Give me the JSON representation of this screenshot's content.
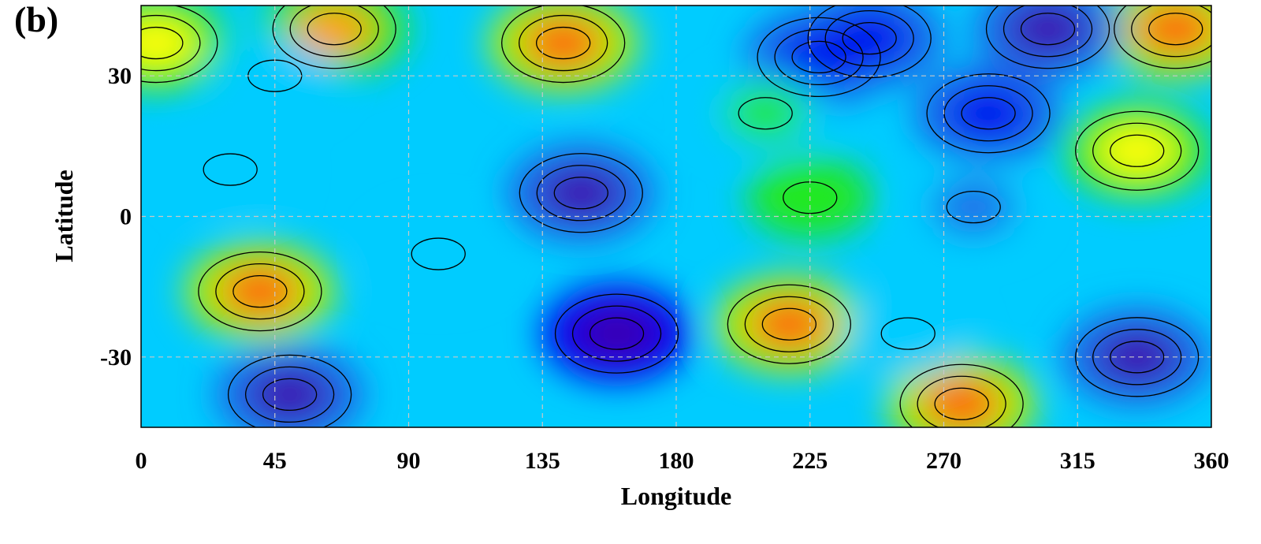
{
  "panel_label": "(b)",
  "chart_data": {
    "type": "heatmap",
    "title": "",
    "xlabel": "Longitude",
    "ylabel": "Latitude",
    "xlim": [
      0,
      360
    ],
    "ylim": [
      -45,
      45
    ],
    "x_ticks": [
      0,
      45,
      90,
      135,
      180,
      225,
      270,
      315,
      360
    ],
    "x_tick_labels": [
      "0",
      "45",
      "90",
      "135",
      "180",
      "225",
      "270",
      "315",
      "360"
    ],
    "y_ticks": [
      30,
      0,
      -30
    ],
    "y_tick_labels": [
      "30",
      "0",
      "-30"
    ],
    "grid": true,
    "grid_style": "dashed",
    "colormap": [
      "#3b00b0",
      "#0000ee",
      "#1a6ae8",
      "#00ccff",
      "#22e8a0",
      "#22e822",
      "#b0f000",
      "#ffff00",
      "#ffa000",
      "#ff6010"
    ],
    "contours": true,
    "features": [
      {
        "lon": 40,
        "lat": -16,
        "value": 0.95
      },
      {
        "lon": 142,
        "lat": 37,
        "value": 1.0
      },
      {
        "lon": 218,
        "lat": -23,
        "value": 1.0
      },
      {
        "lon": 276,
        "lat": -40,
        "value": 1.0
      },
      {
        "lon": 348,
        "lat": 40,
        "value": 0.95
      },
      {
        "lon": 65,
        "lat": 40,
        "value": 0.85
      },
      {
        "lon": 5,
        "lat": 37,
        "value": 0.75
      },
      {
        "lon": 335,
        "lat": 14,
        "value": 0.8
      },
      {
        "lon": 225,
        "lat": 4,
        "value": 0.6
      },
      {
        "lon": 160,
        "lat": -25,
        "value": 0.0
      },
      {
        "lon": 148,
        "lat": 5,
        "value": 0.05
      },
      {
        "lon": 50,
        "lat": -38,
        "value": 0.05
      },
      {
        "lon": 335,
        "lat": -30,
        "value": 0.02
      },
      {
        "lon": 305,
        "lat": 40,
        "value": 0.05
      },
      {
        "lon": 245,
        "lat": 38,
        "value": 0.1
      },
      {
        "lon": 285,
        "lat": 22,
        "value": 0.12
      },
      {
        "lon": 228,
        "lat": 34,
        "value": 0.12
      },
      {
        "lon": 30,
        "lat": 10,
        "value": 0.28
      },
      {
        "lon": 280,
        "lat": 2,
        "value": 0.25
      },
      {
        "lon": 100,
        "lat": -8,
        "value": 0.32
      },
      {
        "lon": 258,
        "lat": -25,
        "value": 0.3
      },
      {
        "lon": 45,
        "lat": 30,
        "value": 0.35
      },
      {
        "lon": 210,
        "lat": 22,
        "value": 0.5
      }
    ]
  }
}
